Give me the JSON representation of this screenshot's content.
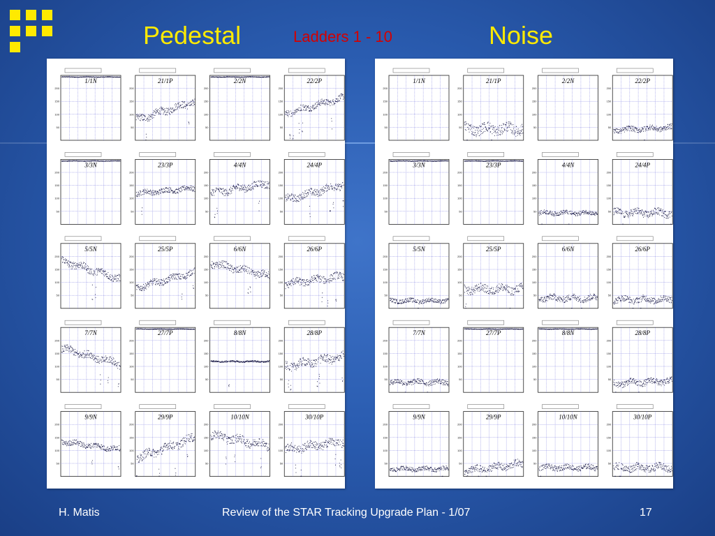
{
  "slide": {
    "title_left": "Pedestal",
    "subtitle": "Ladders 1 - 10",
    "title_right": "Noise",
    "footer_author": "H. Matis",
    "footer_center": "Review of the STAR Tracking Upgrade Plan - 1/07",
    "footer_page": "17"
  },
  "colors": {
    "background": "#2a5cb0",
    "title": "#ffea00",
    "subtitle": "#d40000",
    "data_points": "#0a0a3a",
    "grid": "#3a3ad0"
  },
  "chart_data": [
    {
      "type": "scatter",
      "panel": "pedestal",
      "ylim": [
        0,
        250
      ],
      "yticks": [
        "50",
        "100",
        "150",
        "200"
      ],
      "grid": true,
      "plots": [
        {
          "label": "1/1N",
          "level": 245,
          "spread": 0,
          "noise": 1,
          "dips": 0
        },
        {
          "label": "21/1P",
          "level": 115,
          "spread": 70,
          "noise": 14,
          "dips": 2
        },
        {
          "label": "2/2N",
          "level": 245,
          "spread": 0,
          "noise": 1,
          "dips": 0
        },
        {
          "label": "22/2P",
          "level": 135,
          "spread": 60,
          "noise": 12,
          "dips": 6
        },
        {
          "label": "3/3N",
          "level": 245,
          "spread": 0,
          "noise": 1,
          "dips": 0
        },
        {
          "label": "23/3P",
          "level": 130,
          "spread": 20,
          "noise": 10,
          "dips": 1
        },
        {
          "label": "4/4N",
          "level": 140,
          "spread": 40,
          "noise": 14,
          "dips": 3
        },
        {
          "label": "24/4P",
          "level": 125,
          "spread": 60,
          "noise": 14,
          "dips": 4
        },
        {
          "label": "5/5N",
          "level": 150,
          "spread": -70,
          "noise": 14,
          "dips": 2
        },
        {
          "label": "25/5P",
          "level": 110,
          "spread": 60,
          "noise": 12,
          "dips": 2
        },
        {
          "label": "6/6N",
          "level": 150,
          "spread": -50,
          "noise": 14,
          "dips": 2
        },
        {
          "label": "26/6P",
          "level": 110,
          "spread": 30,
          "noise": 14,
          "dips": 3
        },
        {
          "label": "7/7N",
          "level": 140,
          "spread": -60,
          "noise": 14,
          "dips": 3
        },
        {
          "label": "27/7P",
          "level": 245,
          "spread": 0,
          "noise": 1,
          "dips": 0
        },
        {
          "label": "8/8N",
          "level": 120,
          "spread": 0,
          "noise": 3,
          "dips": 1
        },
        {
          "label": "28/8P",
          "level": 120,
          "spread": 40,
          "noise": 16,
          "dips": 6
        },
        {
          "label": "9/9N",
          "level": 120,
          "spread": -30,
          "noise": 10,
          "dips": 2
        },
        {
          "label": "29/9P",
          "level": 110,
          "spread": 80,
          "noise": 16,
          "dips": 4
        },
        {
          "label": "10/10N",
          "level": 140,
          "spread": -40,
          "noise": 16,
          "dips": 3
        },
        {
          "label": "30/10P",
          "level": 120,
          "spread": 30,
          "noise": 16,
          "dips": 5
        }
      ]
    },
    {
      "type": "scatter",
      "panel": "noise",
      "ylim": [
        0,
        250
      ],
      "yticks": [
        "50",
        "100",
        "150",
        "200"
      ],
      "grid": true,
      "plots": [
        {
          "label": "1/1N",
          "level": -1,
          "spread": 0,
          "noise": 0,
          "dips": 0
        },
        {
          "label": "21/1P",
          "level": 45,
          "spread": 0,
          "noise": 20,
          "dips": 2
        },
        {
          "label": "2/2N",
          "level": -1,
          "spread": 0,
          "noise": 0,
          "dips": 0
        },
        {
          "label": "22/2P",
          "level": 45,
          "spread": 10,
          "noise": 10,
          "dips": 1
        },
        {
          "label": "3/3N",
          "level": 245,
          "spread": 0,
          "noise": 1,
          "dips": 0
        },
        {
          "label": "23/3P",
          "level": 245,
          "spread": 0,
          "noise": 1,
          "dips": 0
        },
        {
          "label": "4/4N",
          "level": 45,
          "spread": 0,
          "noise": 8,
          "dips": 2
        },
        {
          "label": "24/4P",
          "level": 45,
          "spread": 0,
          "noise": 14,
          "dips": 2
        },
        {
          "label": "5/5N",
          "level": 30,
          "spread": 0,
          "noise": 8,
          "dips": 1
        },
        {
          "label": "25/5P",
          "level": 75,
          "spread": 0,
          "noise": 16,
          "dips": 2
        },
        {
          "label": "6/6N",
          "level": 40,
          "spread": 0,
          "noise": 12,
          "dips": 2
        },
        {
          "label": "26/6P",
          "level": 35,
          "spread": 0,
          "noise": 12,
          "dips": 2
        },
        {
          "label": "7/7N",
          "level": 40,
          "spread": 0,
          "noise": 10,
          "dips": 2
        },
        {
          "label": "27/7P",
          "level": 245,
          "spread": 0,
          "noise": 1,
          "dips": 0
        },
        {
          "label": "8/8N",
          "level": 245,
          "spread": 0,
          "noise": 1,
          "dips": 0
        },
        {
          "label": "28/8P",
          "level": 40,
          "spread": 10,
          "noise": 12,
          "dips": 2
        },
        {
          "label": "9/9N",
          "level": 30,
          "spread": 0,
          "noise": 8,
          "dips": 1
        },
        {
          "label": "29/9P",
          "level": 35,
          "spread": 30,
          "noise": 14,
          "dips": 2
        },
        {
          "label": "10/10N",
          "level": 35,
          "spread": 0,
          "noise": 10,
          "dips": 1
        },
        {
          "label": "30/10P",
          "level": 35,
          "spread": 0,
          "noise": 14,
          "dips": 3
        }
      ]
    }
  ]
}
